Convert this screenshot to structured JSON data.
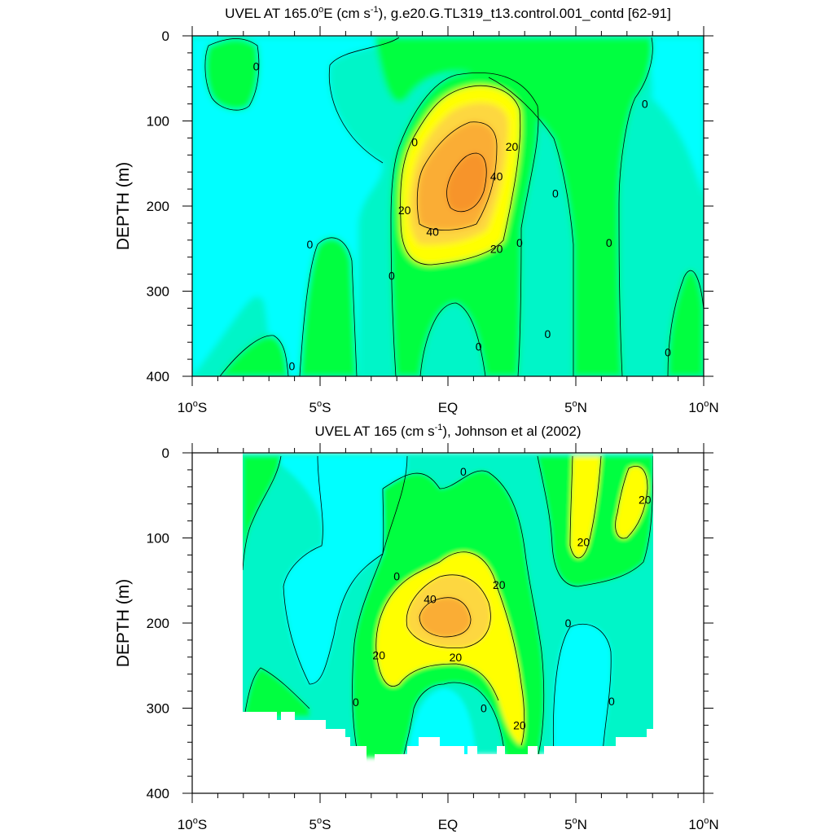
{
  "colors": {
    "level_neg": "#00ffff",
    "level_0": "#00f5c8",
    "level_10": "#00ff41",
    "level_20": "#ffff00",
    "level_30": "#fdd73f",
    "level_40": "#faad35",
    "level_50": "#f7942a",
    "contour_line": "#000000"
  },
  "chart_data": [
    {
      "type": "heatmap",
      "title_main": "UVEL AT 165.0",
      "title_deg": "o",
      "title_mid": "E (cm s",
      "title_sup": "-1",
      "title_end": "), g.e20.G.TL319_t13.control.001_contd [62-91]",
      "ylabel": "DEPTH (m)",
      "xlim": [
        -10,
        10
      ],
      "ylim": [
        400,
        0
      ],
      "y_ticks": [
        "0",
        "100",
        "200",
        "300",
        "400"
      ],
      "x_ticks": [
        {
          "num": "10",
          "deg": "o",
          "hemi": "S"
        },
        {
          "num": "5",
          "deg": "o",
          "hemi": "S"
        },
        {
          "num": "EQ",
          "deg": "",
          "hemi": ""
        },
        {
          "num": "5",
          "deg": "o",
          "hemi": "N"
        },
        {
          "num": "10",
          "deg": "o",
          "hemi": "N"
        }
      ],
      "data_xlim": [
        -10,
        10
      ],
      "data_ylim": [
        0,
        400
      ],
      "core": {
        "x": 1.0,
        "depth": 185,
        "max_cm_s": 55
      },
      "contour_labels": [
        {
          "text": "0",
          "x": -7.5,
          "depth": 36
        },
        {
          "text": "0",
          "x": -1.3,
          "depth": 125
        },
        {
          "text": "0",
          "x": -5.4,
          "depth": 245
        },
        {
          "text": "0",
          "x": -2.2,
          "depth": 282
        },
        {
          "text": "0",
          "x": -6.1,
          "depth": 388
        },
        {
          "text": "20",
          "x": 2.5,
          "depth": 130
        },
        {
          "text": "40",
          "x": 1.9,
          "depth": 165
        },
        {
          "text": "20",
          "x": -1.7,
          "depth": 205
        },
        {
          "text": "40",
          "x": -0.6,
          "depth": 230
        },
        {
          "text": "20",
          "x": 1.9,
          "depth": 250
        },
        {
          "text": "0",
          "x": 4.2,
          "depth": 185
        },
        {
          "text": "0",
          "x": 2.8,
          "depth": 243
        },
        {
          "text": "0",
          "x": 1.2,
          "depth": 365
        },
        {
          "text": "0",
          "x": 3.9,
          "depth": 350
        },
        {
          "text": "0",
          "x": 6.3,
          "depth": 243
        },
        {
          "text": "0",
          "x": 7.7,
          "depth": 80
        },
        {
          "text": "0",
          "x": 8.6,
          "depth": 372
        }
      ]
    },
    {
      "type": "heatmap",
      "title_main": "UVEL AT 165 (cm s",
      "title_sup": "-1",
      "title_end": "), Johnson et al (2002)",
      "ylabel": "DEPTH (m)",
      "xlim": [
        -10,
        10
      ],
      "ylim": [
        400,
        0
      ],
      "y_ticks": [
        "0",
        "100",
        "200",
        "300",
        "400"
      ],
      "x_ticks": [
        {
          "num": "10",
          "deg": "o",
          "hemi": "S"
        },
        {
          "num": "5",
          "deg": "o",
          "hemi": "S"
        },
        {
          "num": "EQ",
          "deg": "",
          "hemi": ""
        },
        {
          "num": "5",
          "deg": "o",
          "hemi": "N"
        },
        {
          "num": "10",
          "deg": "o",
          "hemi": "N"
        }
      ],
      "data_xlim": [
        -8,
        8
      ],
      "data_ylim": [
        0,
        345
      ],
      "core": {
        "x": -0.2,
        "depth": 185,
        "max_cm_s": 47
      },
      "contour_labels": [
        {
          "text": "0",
          "x": 0.6,
          "depth": 22
        },
        {
          "text": "20",
          "x": 7.7,
          "depth": 55
        },
        {
          "text": "20",
          "x": 5.3,
          "depth": 105
        },
        {
          "text": "0",
          "x": -2.0,
          "depth": 145
        },
        {
          "text": "20",
          "x": 2.0,
          "depth": 155
        },
        {
          "text": "40",
          "x": -0.7,
          "depth": 172
        },
        {
          "text": "0",
          "x": 4.7,
          "depth": 200
        },
        {
          "text": "20",
          "x": -2.7,
          "depth": 238
        },
        {
          "text": "20",
          "x": 0.3,
          "depth": 240
        },
        {
          "text": "0",
          "x": 6.4,
          "depth": 292
        },
        {
          "text": "0",
          "x": -3.6,
          "depth": 293
        },
        {
          "text": "0",
          "x": 1.4,
          "depth": 300
        },
        {
          "text": "20",
          "x": 2.8,
          "depth": 320
        }
      ]
    }
  ]
}
